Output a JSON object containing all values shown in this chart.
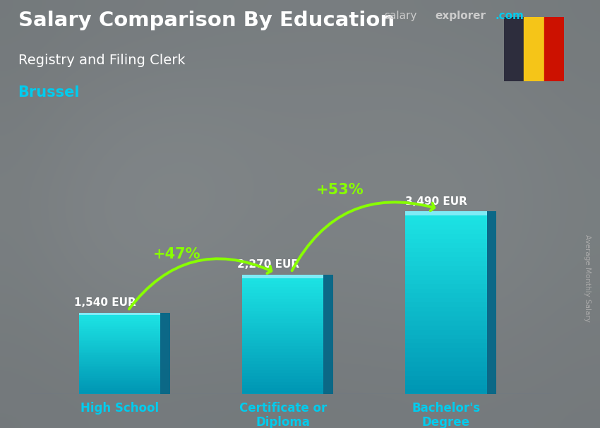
{
  "title": "Salary Comparison By Education",
  "subtitle": "Registry and Filing Clerk",
  "location": "Brussel",
  "site_name": "salary",
  "site_name2": "explorer",
  "site_domain": ".com",
  "ylabel": "Average Monthly Salary",
  "categories": [
    "High School",
    "Certificate or\nDiploma",
    "Bachelor's\nDegree"
  ],
  "values": [
    1540,
    2270,
    3490
  ],
  "labels": [
    "1,540 EUR",
    "2,270 EUR",
    "3,490 EUR"
  ],
  "pct_changes": [
    "+47%",
    "+53%"
  ],
  "bar_face_color": "#00ccee",
  "bar_side_color": "#0077aa",
  "bar_top_color": "#88eeff",
  "background_color": "#3a4a55",
  "overlay_color": [
    0.15,
    0.22,
    0.28
  ],
  "title_color": "#ffffff",
  "subtitle_color": "#ffffff",
  "location_color": "#00ccee",
  "label_color": "#ffffff",
  "pct_color": "#88ff00",
  "arrow_color": "#88ff00",
  "xtick_color": "#00ccee",
  "site_color1": "#aaaaaa",
  "site_color2": "#00ccee",
  "flag_black": "#2d2d3d",
  "flag_yellow": "#f5c518",
  "flag_red": "#cc1100",
  "ylim": [
    0,
    4500
  ],
  "bar_width": 0.5,
  "label_offsets": [
    80,
    80,
    80
  ]
}
